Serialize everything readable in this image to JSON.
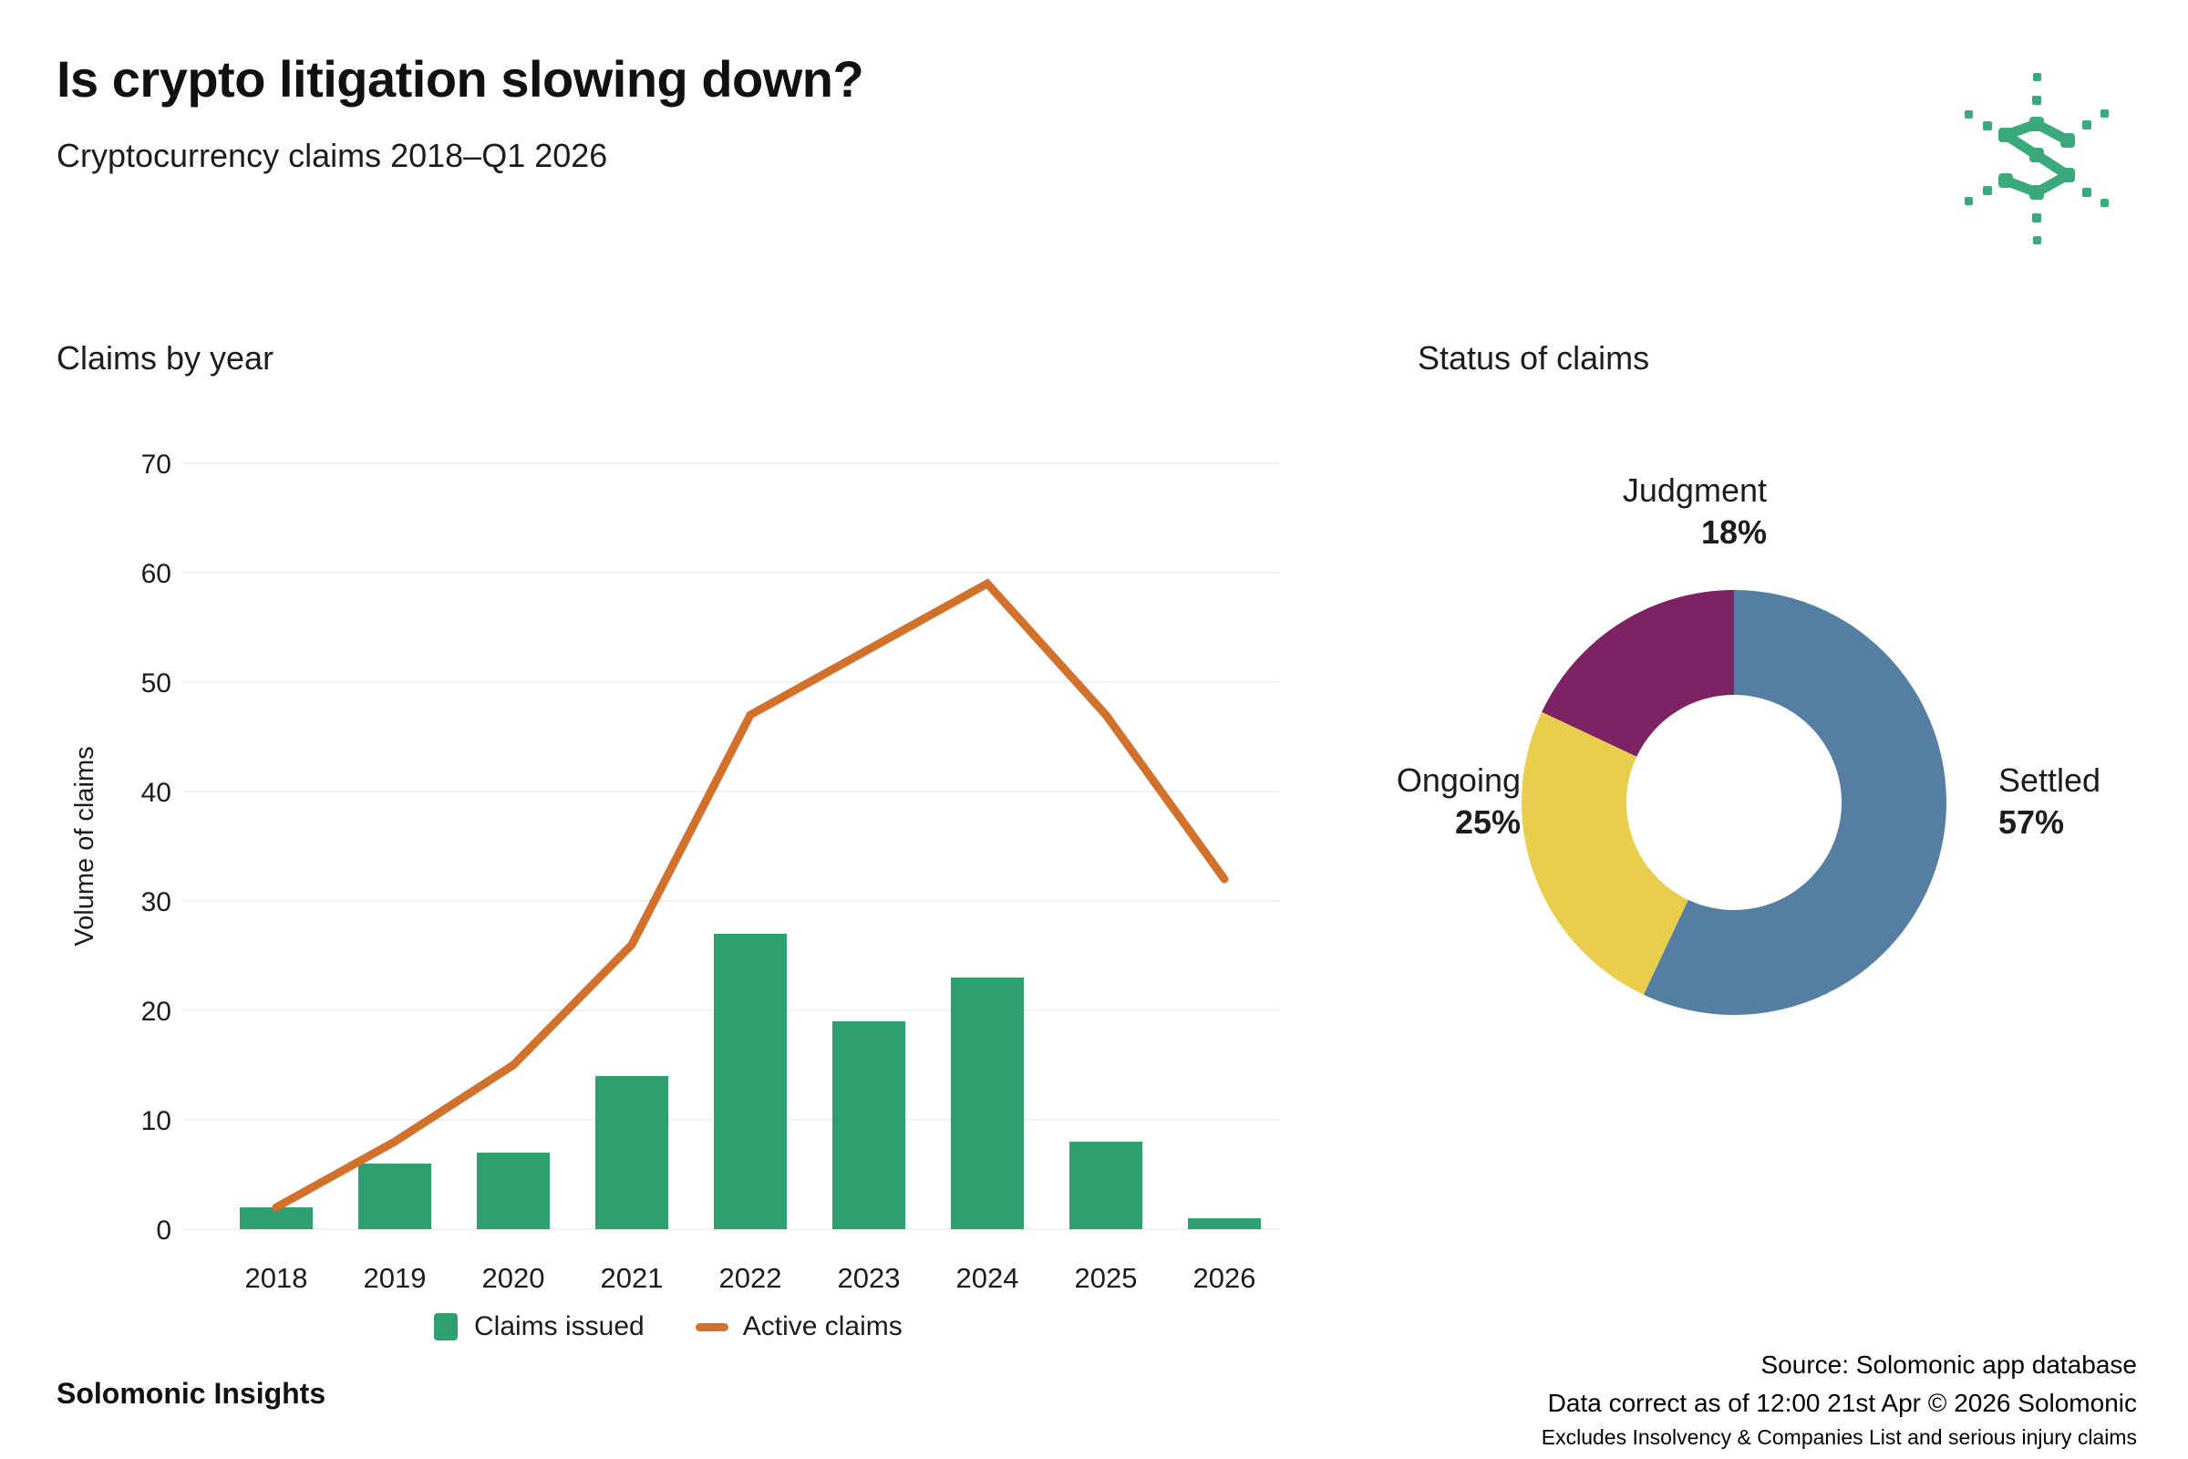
{
  "page": {
    "title": "Is crypto litigation slowing down?",
    "subtitle": "Cryptocurrency claims 2018–Q1 2026",
    "brand_footer": "Solomonic Insights",
    "logo_color": "#3aa97b",
    "text_color": "#1c1c1c",
    "grid_color": "#efefef"
  },
  "footer_right": {
    "line1": "Source: Solomonic app database",
    "line2": "Data correct as of 12:00 21st Apr © 2026 Solomonic",
    "line3": "Excludes Insolvency & Companies List and serious injury claims"
  },
  "chart_data": [
    {
      "type": "bar",
      "title": "Claims by year",
      "xlabel": "",
      "ylabel": "Volume of claims",
      "categories": [
        "2018",
        "2019",
        "2020",
        "2021",
        "2022",
        "2023",
        "2024",
        "2025",
        "2026"
      ],
      "series": [
        {
          "name": "Claims issued",
          "type": "bar",
          "color": "#2d9f71",
          "values": [
            2,
            6,
            7,
            14,
            27,
            19,
            23,
            8,
            1
          ]
        },
        {
          "name": "Active claims",
          "type": "line",
          "color": "#d2712b",
          "values": [
            2,
            8,
            15,
            26,
            47,
            53,
            59,
            47,
            32
          ]
        }
      ],
      "ylim": [
        0,
        70
      ],
      "yticks": [
        0,
        10,
        20,
        30,
        40,
        50,
        60,
        70
      ],
      "grid": true,
      "legend_position": "bottom"
    },
    {
      "type": "pie",
      "subtype": "donut",
      "title": "Status of claims",
      "segments": [
        {
          "label": "Settled",
          "pct": 57,
          "pct_text": "57%",
          "color": "#557fa2"
        },
        {
          "label": "Ongoing",
          "pct": 25,
          "pct_text": "25%",
          "color": "#e9ce4e"
        },
        {
          "label": "Judgment",
          "pct": 18,
          "pct_text": "18%",
          "color": "#7d2264"
        }
      ],
      "legend_position": "none"
    }
  ]
}
